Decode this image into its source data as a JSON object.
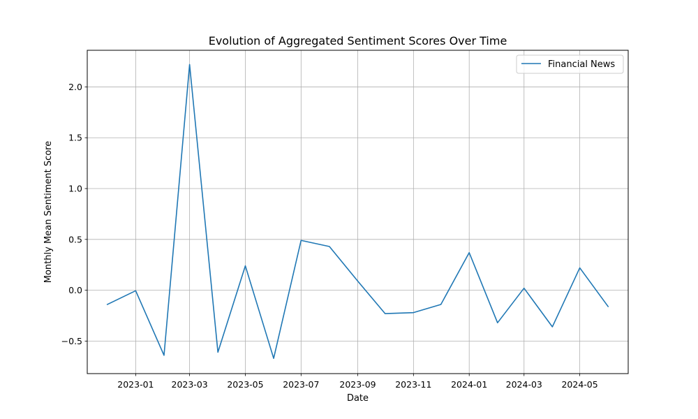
{
  "chart_data": {
    "type": "line",
    "title": "Evolution of Aggregated Sentiment Scores Over Time",
    "xlabel": "Date",
    "ylabel": "Monthly Mean Sentiment Score",
    "grid": true,
    "legend_position": "top-right",
    "xlim": [
      "2022-11-09",
      "2024-06-23"
    ],
    "ylim": [
      -0.82,
      2.36
    ],
    "x_ticks": [
      "2023-01",
      "2023-03",
      "2023-05",
      "2023-07",
      "2023-09",
      "2023-11",
      "2024-01",
      "2024-03",
      "2024-05"
    ],
    "y_ticks": [
      "−0.5",
      "0.0",
      "0.5",
      "1.0",
      "1.5",
      "2.0"
    ],
    "series": [
      {
        "name": "Financial News",
        "color": "#1f77b4",
        "x": [
          "2022-12-01",
          "2023-01-01",
          "2023-02-01",
          "2023-03-01",
          "2023-04-01",
          "2023-05-01",
          "2023-06-01",
          "2023-07-01",
          "2023-08-01",
          "2023-09-01",
          "2023-10-01",
          "2023-11-01",
          "2023-12-01",
          "2024-01-01",
          "2024-02-01",
          "2024-03-01",
          "2024-04-01",
          "2024-05-01",
          "2024-06-01"
        ],
        "y": [
          -0.14,
          -0.005,
          -0.64,
          2.22,
          -0.61,
          0.24,
          -0.67,
          0.49,
          0.43,
          0.09,
          -0.23,
          -0.22,
          -0.14,
          0.37,
          -0.32,
          0.02,
          -0.36,
          0.22,
          -0.16
        ]
      }
    ]
  }
}
